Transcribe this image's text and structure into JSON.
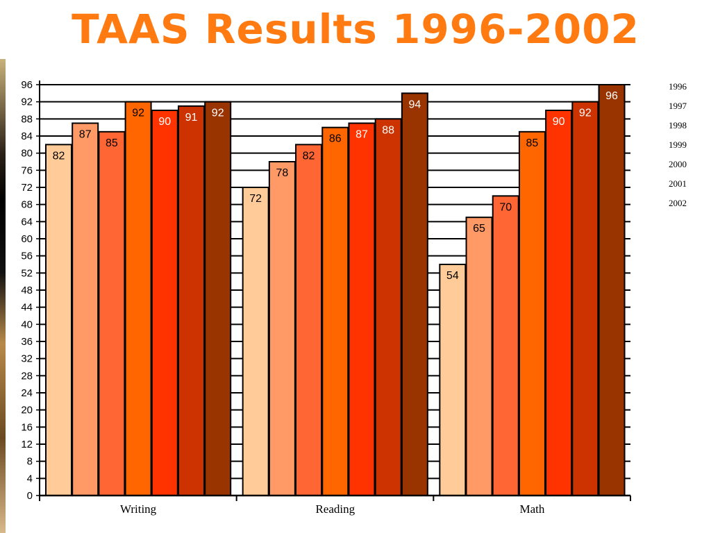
{
  "title": "TAAS Results  1996-2002",
  "chart_data": {
    "type": "bar",
    "categories": [
      "Writing",
      "Reading",
      "Math"
    ],
    "series": [
      {
        "name": "1996",
        "values": [
          82,
          72,
          54
        ],
        "color": "#ffcc99"
      },
      {
        "name": "1997",
        "values": [
          87,
          78,
          65
        ],
        "color": "#ff9966"
      },
      {
        "name": "1998",
        "values": [
          85,
          82,
          70
        ],
        "color": "#ff6633"
      },
      {
        "name": "1999",
        "values": [
          92,
          86,
          85
        ],
        "color": "#ff6600"
      },
      {
        "name": "2000",
        "values": [
          90,
          87,
          90
        ],
        "color": "#ff3300"
      },
      {
        "name": "2001",
        "values": [
          91,
          88,
          92
        ],
        "color": "#cc3300"
      },
      {
        "name": "2002",
        "values": [
          92,
          94,
          96
        ],
        "color": "#993300"
      }
    ],
    "yticks": [
      0,
      4,
      8,
      12,
      16,
      20,
      24,
      28,
      32,
      36,
      40,
      44,
      48,
      52,
      56,
      60,
      64,
      68,
      72,
      76,
      80,
      84,
      88,
      92,
      96
    ],
    "ylim": [
      0,
      96
    ],
    "grid": true,
    "legend": "right",
    "label_colors": [
      "#000000",
      "#000000",
      "#000000",
      "#000000",
      "#ffffff",
      "#ffffff",
      "#ffffff"
    ]
  }
}
